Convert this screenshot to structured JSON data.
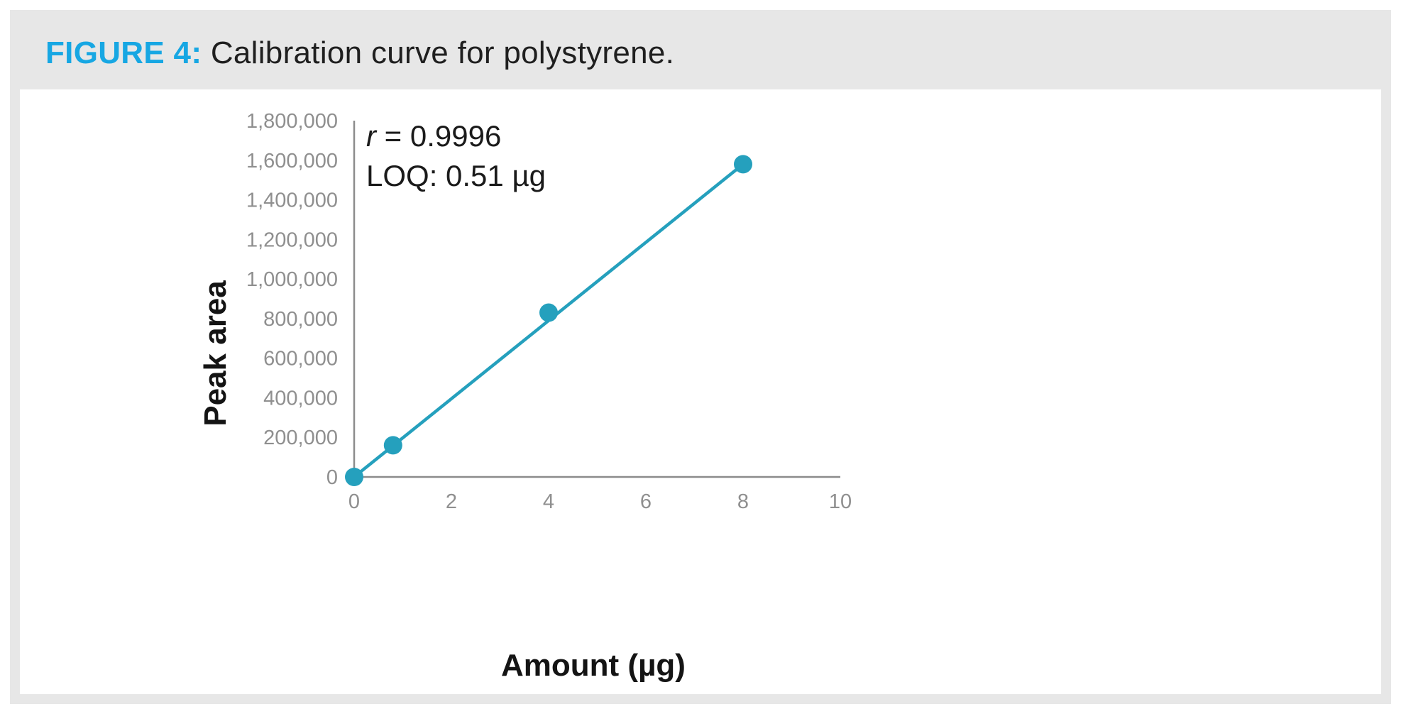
{
  "caption": {
    "label": "FIGURE 4:",
    "text": "Calibration curve for polystyrene."
  },
  "chart_data": {
    "type": "scatter",
    "title": "Calibration curve for polystyrene.",
    "xlabel": "Amount (µg)",
    "ylabel": "Peak area",
    "xlim": [
      0,
      10
    ],
    "ylim": [
      0,
      1800000
    ],
    "x_ticks": [
      0,
      2,
      4,
      6,
      8,
      10
    ],
    "x_tick_labels": [
      "0",
      "2",
      "4",
      "6",
      "8",
      "10"
    ],
    "y_ticks": [
      0,
      200000,
      400000,
      600000,
      800000,
      1000000,
      1200000,
      1400000,
      1600000,
      1800000
    ],
    "y_tick_labels": [
      "0",
      "200,000",
      "400,000",
      "600,000",
      "800,000",
      "1,000,000",
      "1,200,000",
      "1,400,000",
      "1,600,000",
      "1,800,000"
    ],
    "grid": false,
    "series": [
      {
        "name": "Polystyrene",
        "x": [
          0,
          0.8,
          4,
          8
        ],
        "y": [
          0,
          160000,
          830000,
          1580000
        ],
        "color": "#25a0bd"
      }
    ],
    "fit_line": {
      "x": [
        0,
        8
      ],
      "y": [
        0,
        1580000
      ],
      "color": "#25a0bd"
    },
    "annotations": {
      "r_symbol": "r",
      "r_value": " = 0.9996",
      "loq": "LOQ: 0.51 µg"
    },
    "axis_color": "#8c8c8c"
  }
}
